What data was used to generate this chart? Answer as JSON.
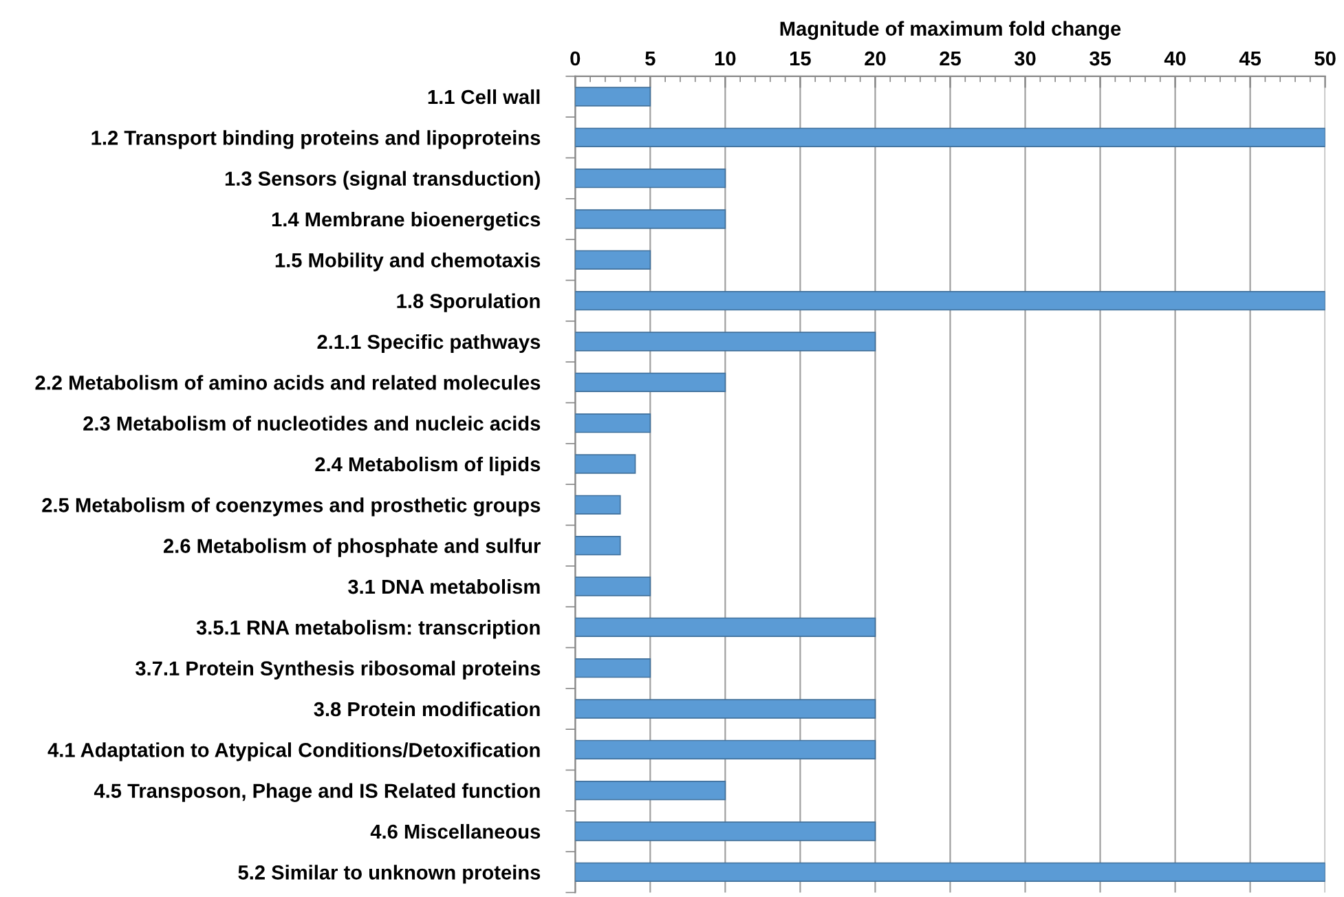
{
  "chart_data": {
    "type": "bar",
    "orientation": "horizontal",
    "xlabel": "Magnitude of maximum fold change",
    "categories": [
      "1.1 Cell wall",
      "1.2 Transport binding proteins and lipoproteins",
      "1.3 Sensors (signal transduction)",
      "1.4 Membrane bioenergetics",
      "1.5 Mobility and chemotaxis",
      "1.8 Sporulation",
      "2.1.1 Specific pathways",
      "2.2 Metabolism of amino acids and related molecules",
      "2.3 Metabolism of nucleotides and nucleic acids",
      "2.4 Metabolism of lipids",
      "2.5 Metabolism of coenzymes and prosthetic groups",
      "2.6 Metabolism of phosphate and sulfur",
      "3.1 DNA metabolism",
      "3.5.1 RNA metabolism: transcription",
      "3.7.1 Protein Synthesis ribosomal proteins",
      "3.8 Protein modification",
      "4.1 Adaptation to Atypical Conditions/Detoxification",
      "4.5 Transposon, Phage and IS Related function",
      "4.6 Miscellaneous",
      "5.2 Similar to unknown proteins"
    ],
    "values": [
      5,
      50,
      10,
      10,
      5,
      50,
      20,
      10,
      5,
      4,
      3,
      3,
      5,
      20,
      5,
      20,
      20,
      10,
      20,
      50
    ],
    "color": "#5b9bd5",
    "xlim": [
      0,
      50
    ],
    "xticks": [
      0,
      5,
      10,
      15,
      20,
      25,
      30,
      35,
      40,
      45,
      50
    ],
    "grid": "x"
  }
}
